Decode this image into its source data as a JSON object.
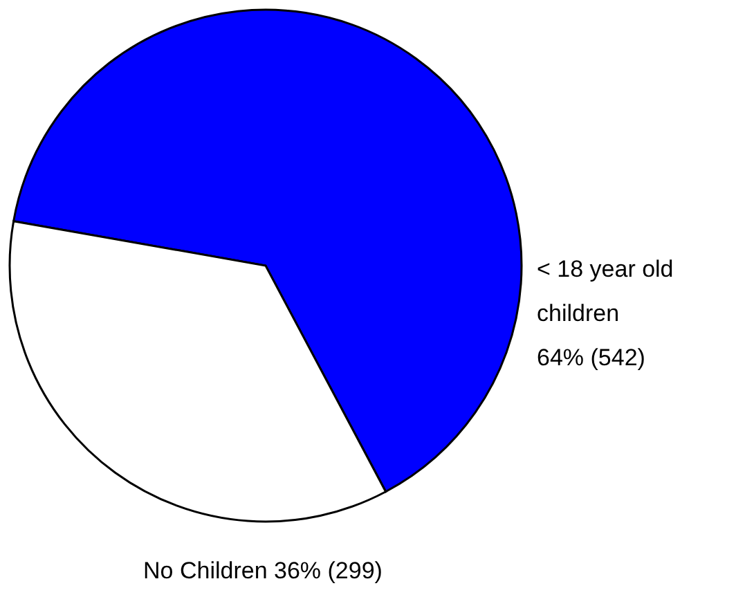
{
  "chart_data": {
    "type": "pie",
    "categories": [
      "< 18 year old children",
      "No Children"
    ],
    "values": [
      542,
      299
    ],
    "colors": [
      "#0000ff",
      "#ffffff"
    ],
    "value_labels": [
      "64% (542)",
      "36% (299)"
    ]
  }
}
